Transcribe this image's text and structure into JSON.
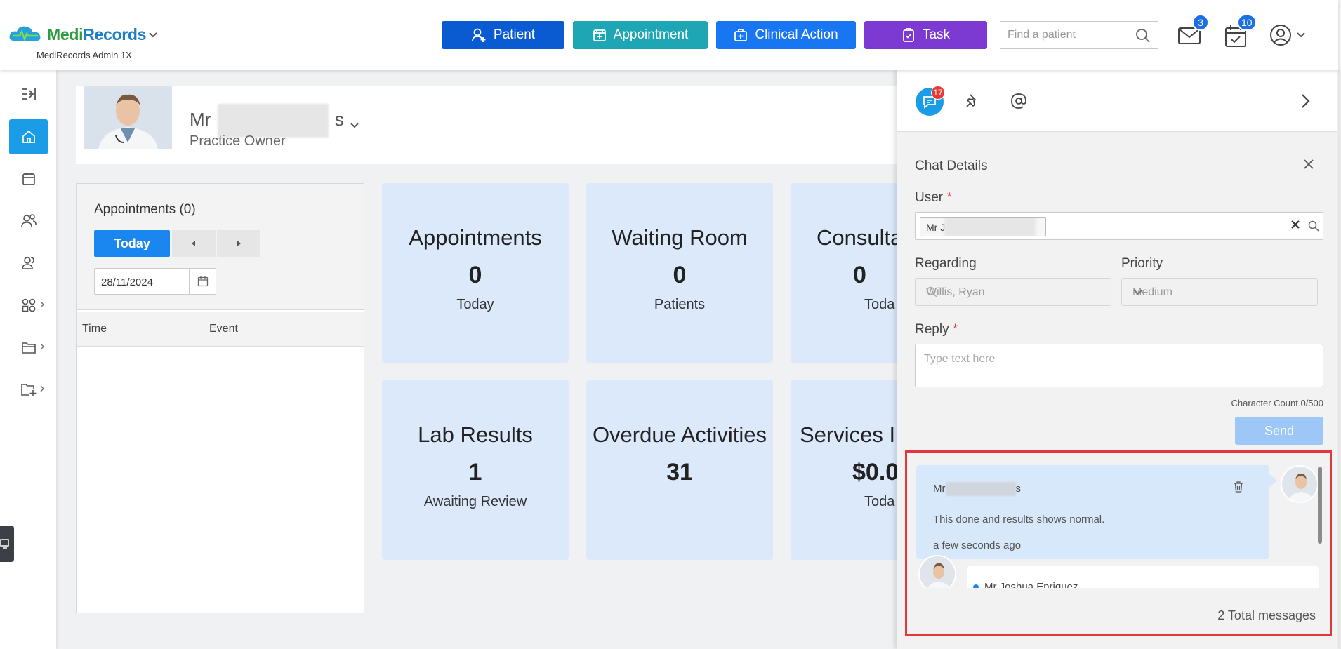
{
  "header": {
    "brand": "MediRecords",
    "brand_left": "Medi",
    "brand_right": "Records",
    "sub": "MediRecords Admin 1X",
    "buttons": {
      "patient": "Patient",
      "appointment": "Appointment",
      "clinical": "Clinical Action",
      "task": "Task"
    },
    "search_placeholder": "Find a patient",
    "mail_badge": "3",
    "calendar_badge": "10",
    "colors": {
      "patient": "#0a5bd1",
      "appointment": "#1ea6b4",
      "clinical": "#1976f2",
      "task": "#7d3ad3"
    }
  },
  "nav": {
    "icons": [
      "collapse-icon",
      "home-icon",
      "calendar-icon",
      "patients-icon",
      "users-icon",
      "modules-icon",
      "folder-icon",
      "folder-add-icon"
    ]
  },
  "profile": {
    "prefix": "Mr",
    "suffix": "s",
    "role": "Practice Owner"
  },
  "appointments": {
    "title": "Appointments (0)",
    "today": "Today",
    "date": "28/11/2024",
    "col_time": "Time",
    "col_event": "Event"
  },
  "tiles": [
    {
      "title": "Appointments",
      "value": "0",
      "sub": "Today"
    },
    {
      "title": "Waiting Room",
      "value": "0",
      "sub": "Patients"
    },
    {
      "title": "Consulta",
      "value": "0",
      "sub": "Toda"
    },
    {
      "title": "Lab Results",
      "value": "1",
      "sub": "Awaiting Review"
    },
    {
      "title": "Overdue Activities",
      "value": "31",
      "sub": ""
    },
    {
      "title": "Services In",
      "value": "$0.0",
      "sub": "Toda"
    }
  ],
  "chat": {
    "badge": "17",
    "title": "Chat Details",
    "user_label": "User",
    "req": "*",
    "user_chip": "Mr J",
    "regarding_label": "Regarding",
    "regarding_value": "Willis, Ryan",
    "priority_label": "Priority",
    "priority_value": "Medium",
    "reply_label": "Reply",
    "reply_placeholder": "Type text here",
    "char_count": "Character Count 0/500",
    "send": "Send",
    "messages": [
      {
        "name_prefix": "Mr",
        "name_suffix": "s",
        "text": "This done and results shows normal.",
        "time": "a few seconds ago"
      },
      {
        "name": "Mr Joshua Enriquez"
      }
    ],
    "total": "2 Total messages"
  }
}
